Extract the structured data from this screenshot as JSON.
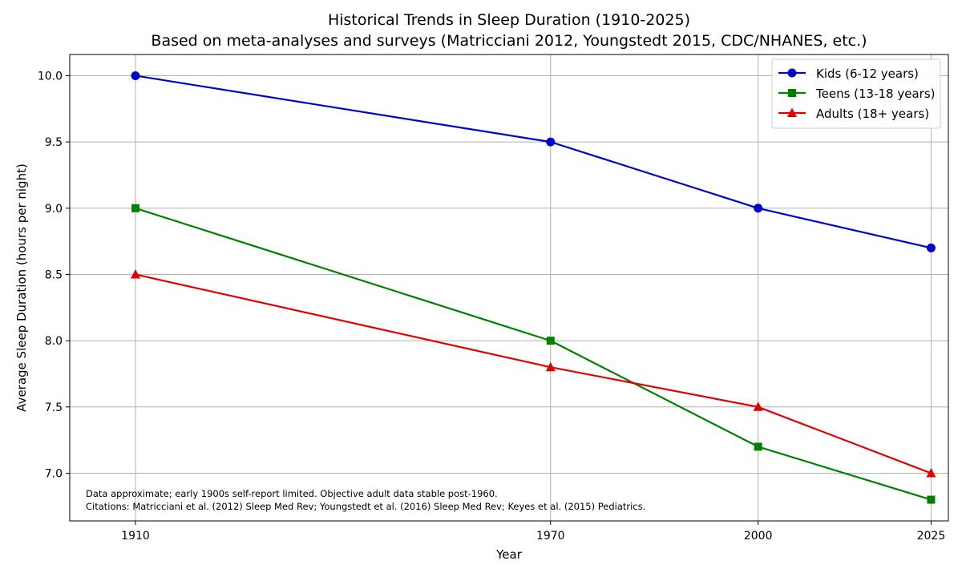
{
  "chart_data": {
    "type": "line",
    "title": "Historical Trends in Sleep Duration (1910-2025)",
    "subtitle": "Based on meta-analyses and surveys (Matricciani 2012, Youngstedt 2015, CDC/NHANES, etc.)",
    "xlabel": "Year",
    "ylabel": "Average Sleep Duration (hours per night)",
    "x": [
      1910,
      1970,
      2000,
      2025
    ],
    "x_tick_labels": [
      "1910",
      "1970",
      "2000",
      "2025"
    ],
    "xlim": [
      1900.5,
      2027.5
    ],
    "ylim": [
      6.64,
      10.16
    ],
    "y_ticks": [
      7.0,
      7.5,
      8.0,
      8.5,
      9.0,
      9.5,
      10.0
    ],
    "y_tick_labels": [
      "7.0",
      "7.5",
      "8.0",
      "8.5",
      "9.0",
      "9.5",
      "10.0"
    ],
    "grid": true,
    "legend_position": "top-right",
    "series": [
      {
        "name": "Kids (6-12 years)",
        "values": [
          10.0,
          9.5,
          9.0,
          8.7
        ],
        "color": "#0000cc",
        "marker": "circle"
      },
      {
        "name": "Teens (13-18 years)",
        "values": [
          9.0,
          8.0,
          7.2,
          6.8
        ],
        "color": "#008000",
        "marker": "square"
      },
      {
        "name": "Adults (18+ years)",
        "values": [
          8.5,
          7.8,
          7.5,
          7.0
        ],
        "color": "#e00000",
        "marker": "triangle"
      }
    ],
    "annotations": [
      "Data approximate; early 1900s self-report limited. Objective adult data stable post-1960.",
      "Citations: Matricciani et al. (2012) Sleep Med Rev; Youngstedt et al. (2016) Sleep Med Rev; Keyes et al. (2015) Pediatrics."
    ]
  }
}
